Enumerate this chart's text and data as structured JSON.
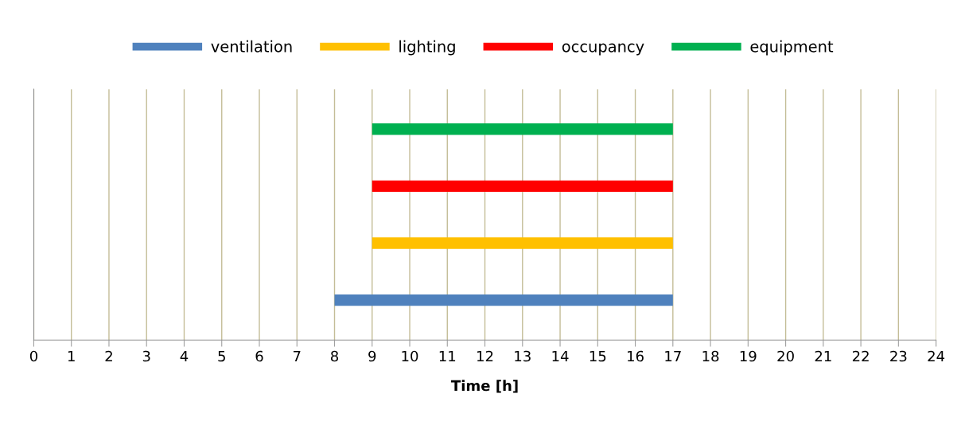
{
  "chart_data": {
    "type": "bar",
    "orientation": "horizontal",
    "categories": [
      null,
      null,
      null,
      null
    ],
    "series": [
      {
        "name": "ventilation",
        "color": "#4f81bd",
        "values": [
          null,
          null,
          null,
          9
        ],
        "base": [
          null,
          null,
          null,
          8
        ]
      },
      {
        "name": "lighting",
        "color": "#ffc000",
        "values": [
          null,
          null,
          8,
          null
        ],
        "base": [
          null,
          null,
          9,
          null
        ]
      },
      {
        "name": "occupancy",
        "color": "#ff0000",
        "values": [
          null,
          8,
          null,
          null
        ],
        "base": [
          null,
          9,
          null,
          null
        ]
      },
      {
        "name": "equipment",
        "color": "#00b050",
        "values": [
          8,
          null,
          null,
          null
        ],
        "base": [
          9,
          null,
          null,
          null
        ]
      }
    ],
    "xlabel": "Time [h]",
    "xlim": [
      0,
      24
    ],
    "xticks": [
      0,
      1,
      2,
      3,
      4,
      5,
      6,
      7,
      8,
      9,
      10,
      11,
      12,
      13,
      14,
      15,
      16,
      17,
      18,
      19,
      20,
      21,
      22,
      23,
      24
    ],
    "grid": "x",
    "legend": "top",
    "tick_labels": "x"
  }
}
